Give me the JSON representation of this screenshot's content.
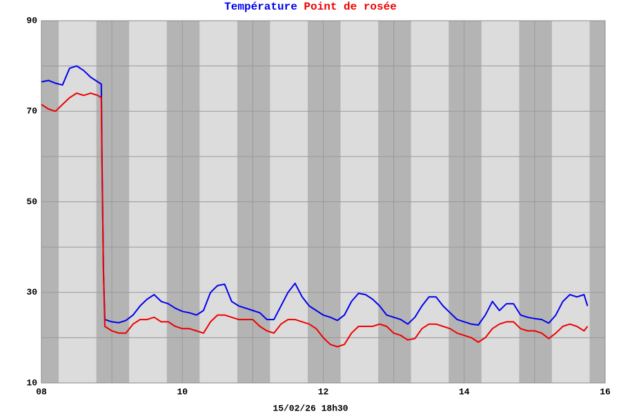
{
  "chart_data": {
    "type": "line",
    "xlabel": "15/02/26 18h30",
    "x": [
      8.0,
      8.1,
      8.2,
      8.3,
      8.4,
      8.5,
      8.6,
      8.7,
      8.8,
      8.85,
      8.86,
      8.88,
      8.9,
      9.0,
      9.1,
      9.2,
      9.3,
      9.4,
      9.5,
      9.6,
      9.7,
      9.8,
      9.9,
      10.0,
      10.1,
      10.2,
      10.3,
      10.4,
      10.5,
      10.6,
      10.7,
      10.8,
      10.9,
      11.0,
      11.1,
      11.2,
      11.3,
      11.4,
      11.5,
      11.6,
      11.7,
      11.8,
      11.9,
      12.0,
      12.1,
      12.2,
      12.3,
      12.4,
      12.5,
      12.6,
      12.7,
      12.8,
      12.9,
      13.0,
      13.1,
      13.2,
      13.3,
      13.4,
      13.5,
      13.6,
      13.7,
      13.8,
      13.9,
      14.0,
      14.1,
      14.2,
      14.3,
      14.4,
      14.5,
      14.6,
      14.7,
      14.8,
      14.9,
      15.0,
      15.1,
      15.2,
      15.3,
      15.4,
      15.5,
      15.6,
      15.7,
      15.75
    ],
    "series": [
      {
        "name": "Température",
        "color": "#0000ee",
        "values": [
          76.5,
          76.8,
          76.2,
          75.8,
          79.5,
          80,
          79,
          77.5,
          76.5,
          76,
          60,
          35,
          24,
          23.5,
          23.3,
          23.8,
          25,
          27,
          28.5,
          29.5,
          28,
          27.5,
          26.5,
          25.8,
          25.5,
          25,
          26,
          30,
          31.5,
          31.8,
          28,
          27,
          26.5,
          26,
          25.5,
          24,
          24,
          27,
          30,
          32,
          29,
          27,
          26,
          25,
          24.5,
          23.8,
          25,
          28,
          29.8,
          29.5,
          28.5,
          27,
          25,
          24.5,
          24,
          23,
          24.5,
          27,
          29,
          29,
          27,
          25.5,
          24,
          23.5,
          23,
          22.8,
          25,
          28,
          26,
          27.5,
          27.5,
          25,
          24.5,
          24.2,
          24,
          23.2,
          25,
          28,
          29.5,
          29,
          29.5,
          27
        ]
      },
      {
        "name": "Point de rosée",
        "color": "#ee0000",
        "values": [
          71.5,
          70.5,
          70,
          71.5,
          73,
          74,
          73.5,
          74,
          73.5,
          73,
          58,
          35,
          22.5,
          21.5,
          21,
          21,
          23,
          24,
          24,
          24.5,
          23.5,
          23.5,
          22.5,
          22,
          22,
          21.5,
          21,
          23.5,
          25,
          25,
          24.5,
          24,
          24,
          24,
          22.5,
          21.5,
          21,
          23,
          24,
          24,
          23.5,
          23,
          22,
          20,
          18.5,
          18,
          18.5,
          21,
          22.5,
          22.5,
          22.5,
          23,
          22.5,
          21,
          20.5,
          19.5,
          19.8,
          22,
          23,
          23,
          22.5,
          22,
          21,
          20.5,
          20,
          19,
          20,
          22,
          23,
          23.5,
          23.5,
          22,
          21.5,
          21.5,
          21,
          19.8,
          21,
          22.5,
          23,
          22.5,
          21.5,
          22.5
        ]
      }
    ],
    "xlim": [
      8,
      16
    ],
    "xticks": [
      {
        "value": 8,
        "label": "08"
      },
      {
        "value": 10,
        "label": "10"
      },
      {
        "value": 12,
        "label": "12"
      },
      {
        "value": 14,
        "label": "14"
      },
      {
        "value": 16,
        "label": "16"
      }
    ],
    "x_minor_grid": [
      9,
      11,
      13,
      15
    ],
    "ylim": [
      10,
      90
    ],
    "yticks": [
      10,
      30,
      50,
      70,
      90
    ],
    "y_minor_grid": [
      20,
      40,
      60,
      80
    ],
    "grid": true,
    "shaded_ranges": [
      [
        8,
        8.245
      ],
      [
        8.78,
        9.245
      ],
      [
        9.78,
        10.245
      ],
      [
        10.78,
        11.245
      ],
      [
        11.78,
        12.245
      ],
      [
        12.78,
        13.245
      ],
      [
        13.78,
        14.245
      ],
      [
        14.78,
        15.245
      ],
      [
        15.78,
        16
      ]
    ],
    "shade_color": "#b4b4b4",
    "plot_background": "#dcdcdc"
  }
}
